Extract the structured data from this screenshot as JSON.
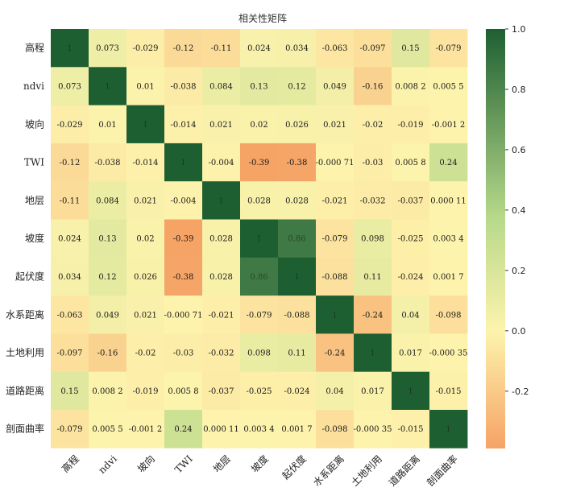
{
  "chart_data": {
    "type": "heatmap",
    "title": "相关性矩阵",
    "labels": [
      "高程",
      "ndvi",
      "坡向",
      "TWI",
      "地层",
      "坡度",
      "起伏度",
      "水系距离",
      "土地利用",
      "道路距离",
      "剖面曲率"
    ],
    "matrix": [
      [
        "1",
        "0.073",
        "-0.029",
        "-0.12",
        "-0.11",
        "0.024",
        "0.034",
        "-0.063",
        "-0.097",
        "0.15",
        "-0.079"
      ],
      [
        "0.073",
        "1",
        "0.01",
        "-0.038",
        "0.084",
        "0.13",
        "0.12",
        "0.049",
        "-0.16",
        "0.008 2",
        "0.005 5"
      ],
      [
        "-0.029",
        "0.01",
        "1",
        "-0.014",
        "0.021",
        "0.02",
        "0.026",
        "0.021",
        "-0.02",
        "-0.019",
        "-0.001 2"
      ],
      [
        "-0.12",
        "-0.038",
        "-0.014",
        "1",
        "-0.004",
        "-0.39",
        "-0.38",
        "-0.000 71",
        "-0.03",
        "0.005 8",
        "0.24"
      ],
      [
        "-0.11",
        "0.084",
        "0.021",
        "-0.004",
        "1",
        "0.028",
        "0.028",
        "-0.021",
        "-0.032",
        "-0.037",
        "0.000 11"
      ],
      [
        "0.024",
        "0.13",
        "0.02",
        "-0.39",
        "0.028",
        "1",
        "0.86",
        "-0.079",
        "0.098",
        "-0.025",
        "0.003 4"
      ],
      [
        "0.034",
        "0.12",
        "0.026",
        "-0.38",
        "0.028",
        "0.86",
        "1",
        "-0.088",
        "0.11",
        "-0.024",
        "0.001 7"
      ],
      [
        "-0.063",
        "0.049",
        "0.021",
        "-0.000 71",
        "-0.021",
        "-0.079",
        "-0.088",
        "1",
        "-0.24",
        "0.04",
        "-0.098"
      ],
      [
        "-0.097",
        "-0.16",
        "-0.02",
        "-0.03",
        "-0.032",
        "0.098",
        "0.11",
        "-0.24",
        "1",
        "0.017",
        "-0.000 35"
      ],
      [
        "0.15",
        "0.008 2",
        "-0.019",
        "0.005 8",
        "-0.037",
        "-0.025",
        "-0.024",
        "0.04",
        "0.017",
        "1",
        "-0.015"
      ],
      [
        "-0.079",
        "0.005 5",
        "-0.001 2",
        "0.24",
        "0.000 11",
        "0.003 4",
        "0.001 7",
        "-0.098",
        "-0.000 35",
        "-0.015",
        "1"
      ]
    ],
    "vmin": -0.39,
    "vmax": 1.0,
    "colorbar_ticks": [
      "1.0",
      "0.8",
      "0.6",
      "0.4",
      "0.2",
      "0.0",
      "-0.2"
    ],
    "colorbar_tick_values": [
      1.0,
      0.8,
      0.6,
      0.4,
      0.2,
      0.0,
      -0.2
    ],
    "colormap": [
      "#f6a366",
      "#fdf3ad",
      "#1e5f32"
    ]
  }
}
